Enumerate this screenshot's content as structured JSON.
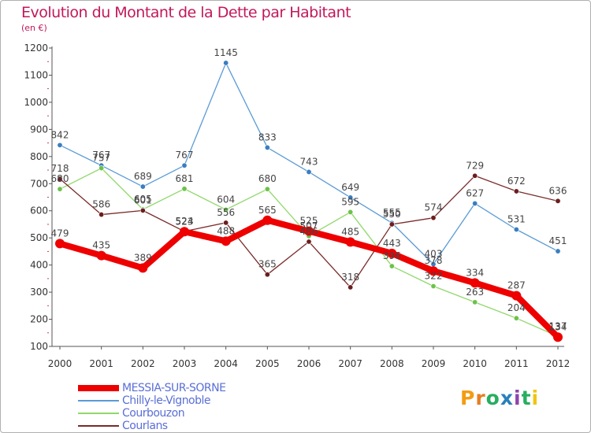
{
  "title": "Evolution du Montant de la Dette par Habitant",
  "subtitle": "(en €)",
  "logo": {
    "text": "Proxiti",
    "colors": [
      "#f39c12",
      "#e67e22",
      "#27ae60",
      "#2980b9",
      "#8e44ad",
      "#27ae60",
      "#f1c40f"
    ]
  },
  "chart_data": {
    "type": "line",
    "title": "Evolution du Montant de la Dette par Habitant",
    "ylabel": "(en €)",
    "xlabel": "",
    "categories": [
      "2000",
      "2001",
      "2002",
      "2003",
      "2004",
      "2005",
      "2006",
      "2007",
      "2008",
      "2009",
      "2010",
      "2011",
      "2012"
    ],
    "ylim": [
      100,
      1200
    ],
    "yticks": [
      100,
      200,
      300,
      400,
      500,
      600,
      700,
      800,
      900,
      1000,
      1100,
      1200
    ],
    "grid": false,
    "legend": "bottom-left",
    "series": [
      {
        "name": "Chilly-le-Vignoble",
        "color": "#5b9bd5",
        "marker": "#3a7dc2",
        "values": [
          842,
          767,
          689,
          767,
          1145,
          833,
          743,
          649,
          555,
          403,
          627,
          531,
          451
        ]
      },
      {
        "name": "Courbouzon",
        "color": "#8fd86a",
        "marker": "#6cc24a",
        "values": [
          680,
          757,
          605,
          681,
          604,
          680,
          507,
          595,
          396,
          322,
          263,
          204,
          137
        ]
      },
      {
        "name": "Courlans",
        "color": "#7a2a2a",
        "marker": "#6b1e1e",
        "values": [
          718,
          586,
          601,
          524,
          556,
          365,
          486,
          318,
          550,
          574,
          729,
          672,
          636
        ]
      },
      {
        "name": "MESSIA-SUR-SORNE",
        "color": "#ee0000",
        "marker": "#ee0000",
        "values": [
          479,
          435,
          389,
          523,
          488,
          565,
          525,
          485,
          443,
          378,
          334,
          287,
          134
        ]
      }
    ]
  }
}
